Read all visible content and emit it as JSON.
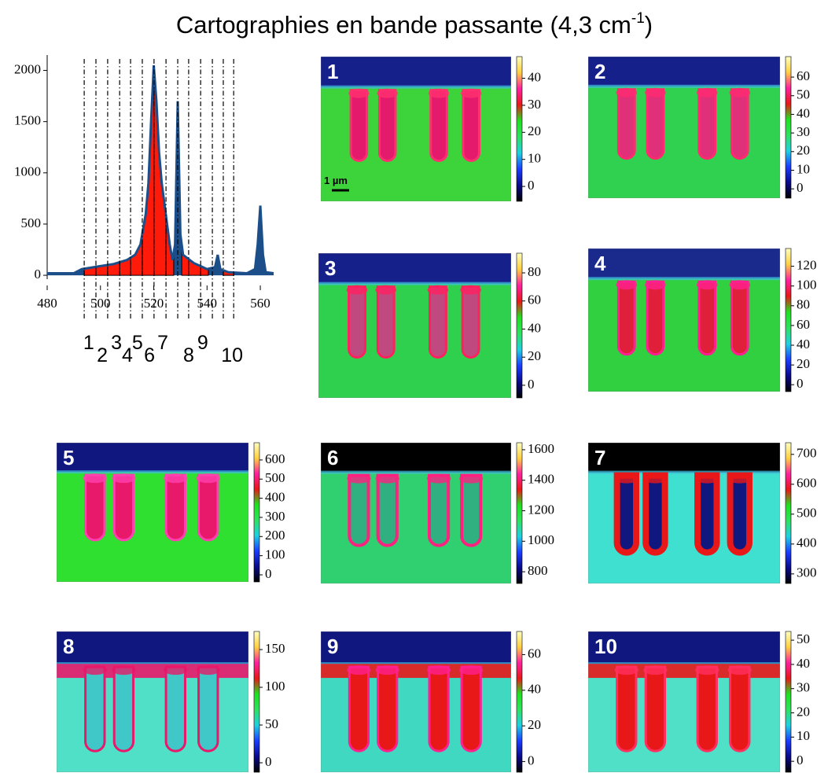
{
  "title": {
    "text": "Cartographies en bande passante (4,3 cm",
    "sup": "-1",
    "end": ")"
  },
  "colormap": [
    "#000000",
    "#0a0a8c",
    "#1a3cff",
    "#20d0e0",
    "#30e060",
    "#20e020",
    "#e81818",
    "#ff20a0",
    "#ffd040",
    "#ffffc0"
  ],
  "chart_data": [
    {
      "type": "area",
      "color": "#1c4f8a",
      "fill_color": "#ff1a0a",
      "x": [
        480,
        490,
        493,
        500,
        505,
        510,
        513,
        515,
        517,
        518,
        519,
        520,
        521,
        522,
        523,
        524,
        525,
        526,
        527,
        528,
        529,
        530,
        531,
        535,
        540,
        543,
        544,
        545,
        548,
        555,
        558,
        559,
        560,
        561,
        562,
        565
      ],
      "values": [
        20,
        20,
        60,
        90,
        110,
        150,
        200,
        300,
        600,
        900,
        1500,
        2050,
        1700,
        1200,
        900,
        700,
        500,
        300,
        150,
        300,
        1700,
        400,
        200,
        120,
        60,
        80,
        200,
        60,
        30,
        20,
        60,
        300,
        680,
        200,
        30,
        20
      ],
      "xlim": [
        480,
        565
      ],
      "ylim": [
        -130,
        2150
      ],
      "xticks": [
        480,
        500,
        520,
        540,
        560
      ],
      "yticks": [
        0,
        500,
        1000,
        1500,
        2000
      ],
      "band_lines": [
        493.9,
        498.3,
        502.7,
        507.2,
        511.3,
        515.7,
        520.1,
        524.6,
        529.0,
        533.1,
        537.6,
        542.0,
        546.1,
        550.0
      ],
      "fill_ranges": [
        [
          493.9,
          527.5
        ],
        [
          530.5,
          540.5
        ],
        [
          546.1,
          550.0
        ]
      ],
      "band_labels": [
        1,
        2,
        3,
        4,
        5,
        6,
        7,
        8,
        9,
        10
      ],
      "band_label_x": [
        495.6,
        500.7,
        506.0,
        510.1,
        513.9,
        518.4,
        523.4,
        533.1,
        538.4,
        549.4
      ]
    },
    {
      "type": "heatmap",
      "label": "1",
      "zlim": [
        -5.5,
        48
      ],
      "zticks": [
        0,
        10,
        20,
        30,
        40
      ],
      "top_color": "#16208a",
      "bg_color": "#3cd43a",
      "pillar_color": "#e41a6c",
      "edge_color": "#ff3070",
      "scale_label": "1 µm"
    },
    {
      "type": "heatmap",
      "label": "2",
      "zlim": [
        -5,
        71
      ],
      "zticks": [
        0,
        10,
        20,
        30,
        40,
        50,
        60
      ],
      "top_color": "#16208a",
      "bg_color": "#30d050",
      "pillar_color": "#e0307a",
      "edge_color": "#ff2a70"
    },
    {
      "type": "heatmap",
      "label": "3",
      "zlim": [
        -9,
        94
      ],
      "zticks": [
        0,
        20,
        40,
        60,
        80
      ],
      "top_color": "#16208a",
      "bg_color": "#2ed04e",
      "pillar_color": "#c04a80",
      "edge_color": "#ff2060"
    },
    {
      "type": "heatmap",
      "label": "4",
      "zlim": [
        -7,
        138
      ],
      "zticks": [
        0,
        20,
        40,
        60,
        80,
        100,
        120
      ],
      "top_color": "#1a2a8c",
      "bg_color": "#30d040",
      "pillar_color": "#e0203a",
      "edge_color": "#ff2090"
    },
    {
      "type": "heatmap",
      "label": "5",
      "zlim": [
        -37,
        690
      ],
      "zticks": [
        0,
        100,
        200,
        300,
        400,
        500,
        600
      ],
      "top_color": "#101880",
      "bg_color": "#30e030",
      "pillar_color": "#e8186a",
      "edge_color": "#ff40b0"
    },
    {
      "type": "heatmap",
      "label": "6",
      "zlim": [
        723,
        1646
      ],
      "zticks": [
        800,
        1000,
        1200,
        1400,
        1600
      ],
      "top_color": "#000000",
      "bg_color": "#30d070",
      "pillar_color": "#30b080",
      "edge_color": "#ff2080"
    },
    {
      "type": "heatmap",
      "label": "7",
      "zlim": [
        268,
        739
      ],
      "zticks": [
        300,
        400,
        500,
        600,
        700
      ],
      "top_color": "#000000",
      "bg_color": "#40e0d0",
      "pillar_color": "#101880",
      "edge_color": "#e81818"
    },
    {
      "type": "heatmap",
      "label": "8",
      "zlim": [
        -12.5,
        174
      ],
      "zticks": [
        0,
        50,
        100,
        150
      ],
      "top_color": "#101880",
      "bg_color": "#50e0c8",
      "pillar_color": "#40c8c8",
      "edge_color": "#e8186a",
      "band_color": "#e8186a"
    },
    {
      "type": "heatmap",
      "label": "9",
      "zlim": [
        -6,
        73
      ],
      "zticks": [
        0,
        20,
        40,
        60
      ],
      "top_color": "#101880",
      "bg_color": "#40d8c0",
      "pillar_color": "#e81818",
      "edge_color": "#ff2090",
      "band_color": "#e81818"
    },
    {
      "type": "heatmap",
      "label": "10",
      "zlim": [
        -4.5,
        53.6
      ],
      "zticks": [
        0,
        10,
        20,
        30,
        40,
        50
      ],
      "top_color": "#101880",
      "bg_color": "#50e0c8",
      "pillar_color": "#e81818",
      "edge_color": "#ff3060",
      "band_color": "#e81818"
    }
  ]
}
